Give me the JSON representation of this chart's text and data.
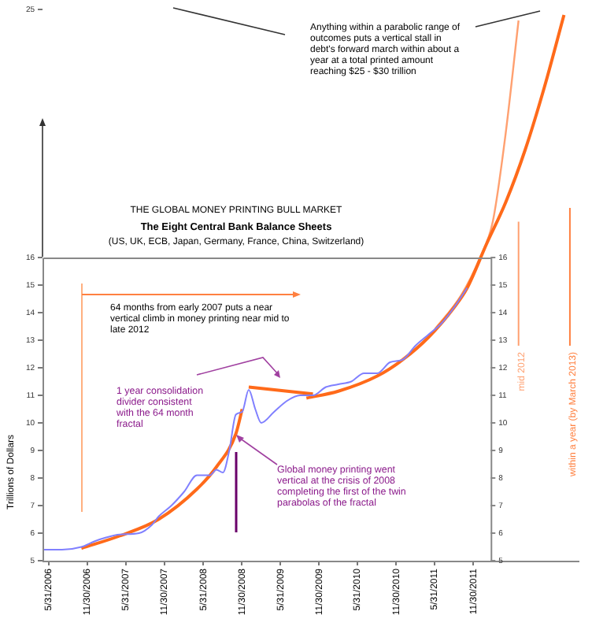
{
  "chart_data": {
    "type": "line",
    "title": "THE GLOBAL MONEY PRINTING BULL MARKET",
    "subtitle": "The Eight Central Bank Balance Sheets",
    "ylabel": "Trillions of Dollars",
    "annotations": [
      "(US, UK, ECB, Japan, Germany, France, China, Switzerland)",
      "Anything within a parabolic range of outcomes puts a vertical stall in debt's forward march within about a year at a total printed amount reaching $25 - $30 trillion",
      "64 months from early 2007 puts a near vertical climb in money printing near mid to late 2012",
      "1 year consolidation divider consistent with the 64 month fractal",
      "Global money printing went vertical at the crisis of 2008 completing the first of the twin parabolas of the fractal"
    ],
    "xlim": [
      "2006-05-01",
      "2013-04-15"
    ],
    "xticks": [
      {
        "value": "2006-05-31",
        "label": "5/31/2006"
      },
      {
        "value": "2006-11-30",
        "label": "11/30/2006"
      },
      {
        "value": "2007-05-31",
        "label": "5/31/2007"
      },
      {
        "value": "2007-11-30",
        "label": "11/30/2007"
      },
      {
        "value": "2008-05-31",
        "label": "5/31/2008"
      },
      {
        "value": "2008-11-30",
        "label": "11/30/2008"
      },
      {
        "value": "2009-05-31",
        "label": "5/31/2009"
      },
      {
        "value": "2009-11-30",
        "label": "11/30/2009"
      },
      {
        "value": "2010-05-31",
        "label": "5/31/2010"
      },
      {
        "value": "2010-11-30",
        "label": "11/30/2010"
      },
      {
        "value": "2011-05-31",
        "label": "5/31/2011"
      },
      {
        "value": "2011-11-30",
        "label": "11/30/2011"
      }
    ],
    "ylim": [
      5,
      25
    ],
    "yticks": [
      5,
      6,
      7,
      8,
      9,
      10,
      11,
      12,
      13,
      14,
      15,
      16,
      25
    ],
    "y2lim": [
      5,
      16
    ],
    "y2ticks": [
      5,
      6,
      7,
      8,
      9,
      10,
      11,
      12,
      13,
      14,
      15,
      16
    ],
    "series": [
      {
        "color": "#8080ff",
        "x": [
          "2006-05",
          "2006-08",
          "2006-11",
          "2007-01",
          "2007-03",
          "2007-05",
          "2007-08",
          "2007-10",
          "2007-11",
          "2008-01",
          "2008-03",
          "2008-05",
          "2008-07",
          "2008-08",
          "2008-09",
          "2008-10",
          "2008-11",
          "2008-12",
          "2009-01",
          "2009-02",
          "2009-03",
          "2009-05",
          "2009-07",
          "2009-09",
          "2009-11",
          "2010-01",
          "2010-03",
          "2010-05",
          "2010-07",
          "2010-09",
          "2010-11",
          "2011-01",
          "2011-03",
          "2011-05",
          "2011-07",
          "2011-09",
          "2011-11"
        ],
        "values": [
          5.4,
          5.4,
          5.5,
          5.7,
          5.85,
          5.95,
          6.0,
          6.3,
          6.6,
          7.0,
          7.5,
          8.1,
          8.1,
          8.3,
          8.2,
          9.0,
          10.3,
          10.4,
          11.2,
          10.5,
          10.0,
          10.4,
          10.8,
          11.0,
          11.0,
          11.3,
          11.4,
          11.5,
          11.8,
          11.8,
          12.2,
          12.3,
          12.8,
          13.2,
          13.6,
          14.2,
          14.9
        ]
      },
      {
        "type": "line",
        "color": "#ff6a1a",
        "x": [
          "2006-11",
          "2007-05",
          "2007-11",
          "2008-05",
          "2008-08",
          "2008-11",
          "2008-12"
        ],
        "values": [
          5.45,
          5.9,
          6.5,
          7.6,
          8.4,
          9.6,
          10.5
        ]
      },
      {
        "type": "line",
        "color": "#ff6a1a",
        "x": [
          "2009-01",
          "2009-11"
        ],
        "values": [
          11.3,
          11.05
        ]
      },
      {
        "type": "line",
        "color": "#ff6a1a",
        "x": [
          "2009-10",
          "2010-03",
          "2010-09",
          "2011-01",
          "2011-05",
          "2011-09",
          "2011-11",
          "2012-02",
          "2012-05",
          "2012-08",
          "2012-11",
          "2013-02"
        ],
        "values": [
          10.9,
          11.15,
          11.7,
          12.3,
          13.1,
          14.2,
          14.9,
          16.5,
          18,
          19.9,
          22.2,
          24.8
        ]
      },
      {
        "type": "line",
        "color": "#ffa070",
        "x": [
          "2011-06",
          "2011-10",
          "2012-01",
          "2012-03",
          "2012-05",
          "2012-07"
        ],
        "values": [
          13.4,
          14.6,
          16.0,
          17.3,
          20.5,
          24.6
        ]
      }
    ],
    "ref_lines": [
      {
        "axis": "x",
        "value": "2012-07",
        "label": "mid 2012",
        "color": "#ffa070"
      },
      {
        "axis": "x",
        "value": "2013-03",
        "label": "within a year (by March 2013)",
        "color": "#ff8040"
      }
    ],
    "grid": false,
    "legend": false,
    "marker": "none",
    "line_style": "solid"
  }
}
